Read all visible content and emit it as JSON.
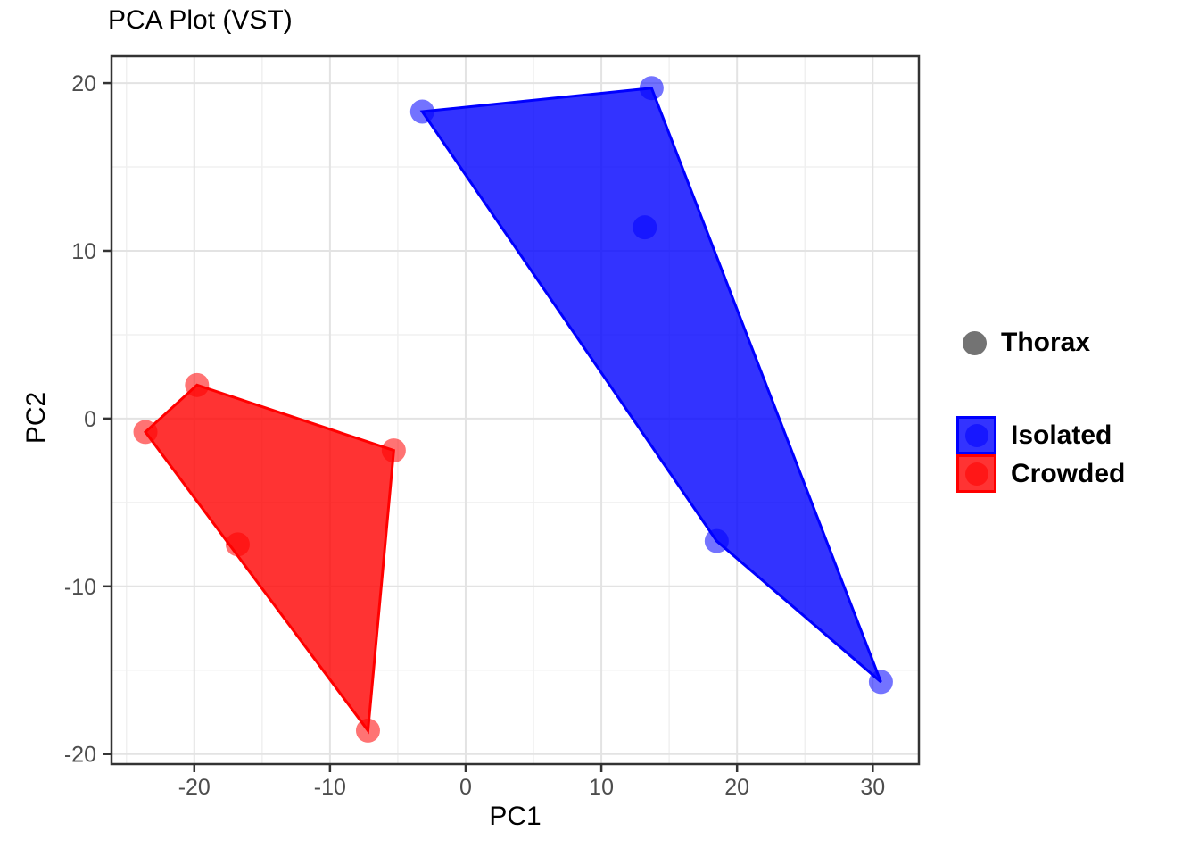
{
  "title": "PCA Plot (VST)",
  "x_axis_label": "PC1",
  "y_axis_label": "PC2",
  "colors": {
    "isolated": "#0000ff",
    "crowded": "#ff0000",
    "thorax_point": "#737373",
    "axis_text": "#4d4d4d",
    "panel_border": "#333333",
    "grid_major": "#e3e3e3",
    "grid_minor": "#f0f0f0"
  },
  "legend": {
    "shape_entry": {
      "label": "Thorax",
      "marker": "circle-icon",
      "color": "#737373"
    },
    "fill_entries": [
      {
        "label": "Isolated",
        "color": "#0000ff"
      },
      {
        "label": "Crowded",
        "color": "#ff0000"
      }
    ]
  },
  "chart_data": {
    "type": "scatter",
    "title": "PCA Plot (VST)",
    "xlabel": "PC1",
    "ylabel": "PC2",
    "xlim": [
      -26.1,
      33.4
    ],
    "ylim": [
      -20.6,
      21.6
    ],
    "x_ticks": [
      -20,
      -10,
      0,
      10,
      20,
      30
    ],
    "y_ticks": [
      -20,
      -10,
      0,
      10,
      20
    ],
    "x_minor": [
      -25,
      -15,
      -5,
      5,
      15,
      25
    ],
    "y_minor": [
      -15,
      -5,
      5,
      15
    ],
    "grid": true,
    "legend_position": "right",
    "point_alpha": 0.55,
    "fill_alpha": 0.8,
    "series": [
      {
        "name": "Isolated",
        "color": "#0000ff",
        "points": [
          [
            -3.2,
            18.3
          ],
          [
            13.7,
            19.7
          ],
          [
            13.2,
            11.4
          ],
          [
            18.5,
            -7.3
          ],
          [
            30.6,
            -15.7
          ]
        ],
        "hull": [
          [
            -3.2,
            18.3
          ],
          [
            13.7,
            19.7
          ],
          [
            30.6,
            -15.7
          ],
          [
            18.5,
            -7.3
          ]
        ]
      },
      {
        "name": "Crowded",
        "color": "#ff0000",
        "points": [
          [
            -23.6,
            -0.8
          ],
          [
            -19.8,
            2.0
          ],
          [
            -16.8,
            -7.5
          ],
          [
            -5.3,
            -1.9
          ],
          [
            -7.2,
            -18.6
          ]
        ],
        "hull": [
          [
            -23.6,
            -0.8
          ],
          [
            -19.8,
            2.0
          ],
          [
            -5.3,
            -1.9
          ],
          [
            -7.2,
            -18.6
          ]
        ]
      }
    ]
  }
}
